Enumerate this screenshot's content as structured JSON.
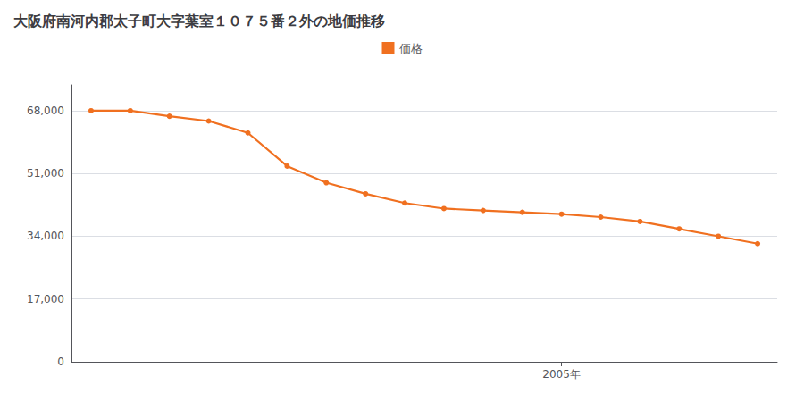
{
  "chart_data": {
    "type": "line",
    "title": "大阪府南河内郡太子町大字葉室１０７５番２外の地価推移",
    "x": [
      1993,
      1994,
      1995,
      1996,
      1997,
      1998,
      1999,
      2000,
      2001,
      2002,
      2003,
      2004,
      2005,
      2006,
      2007,
      2008,
      2009,
      2010
    ],
    "series": [
      {
        "name": "価格",
        "color": "#f07020",
        "values": [
          68000,
          68000,
          66500,
          65200,
          62000,
          53000,
          48500,
          45500,
          43000,
          41500,
          41000,
          40500,
          40000,
          39200,
          38000,
          36000,
          34000,
          32000
        ]
      }
    ],
    "xlim": [
      1992.5,
      2010.5
    ],
    "xticks": [
      {
        "value": 2005,
        "label": "2005年"
      }
    ],
    "ylim": [
      0,
      75000
    ],
    "yticks": [
      0,
      {
        "value": 17000,
        "label": "17,000"
      },
      {
        "value": 34000,
        "label": "34,000"
      },
      {
        "value": 51000,
        "label": "51,000"
      },
      {
        "value": 68000,
        "label": "68,000"
      }
    ],
    "grid": true,
    "legend": "top",
    "marker": "circle"
  }
}
